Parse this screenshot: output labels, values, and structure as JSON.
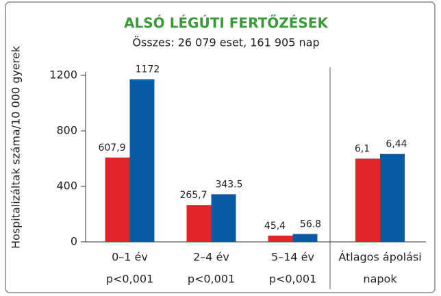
{
  "chart_data": {
    "type": "bar",
    "title": "ALSÓ LÉGÚTI FERTŐZÉSEK",
    "subtitle": "Összes: 26 079 eset, 161 905 nap",
    "ylabel": "Hospitalizáltak száma/10 000 gyerek",
    "categories": [
      "0–1 év",
      "2–4 év",
      "5–14 év"
    ],
    "category_notes": [
      "p<0,001",
      "p<0,001",
      "p<0,001"
    ],
    "series": [
      {
        "color": "#e0262b",
        "values": [
          607.9,
          265.7,
          45.4
        ],
        "value_labels": [
          "607,9",
          "265,7",
          "45,4"
        ]
      },
      {
        "color": "#0b5aa8",
        "values": [
          1172,
          343.5,
          56.8
        ]
      }
    ],
    "ylim": [
      0,
      1200
    ],
    "yticks": [
      0,
      400,
      800,
      1200
    ],
    "side_panel": {
      "label_lines": [
        "Átlagos ápolási",
        "napok"
      ],
      "values": [
        6.1,
        6.44
      ],
      "value_labels": [
        "6,1",
        "6,44"
      ],
      "colors": [
        "#e0262b",
        "#0b5aa8"
      ],
      "y2lim": [
        0,
        12.2
      ]
    }
  }
}
